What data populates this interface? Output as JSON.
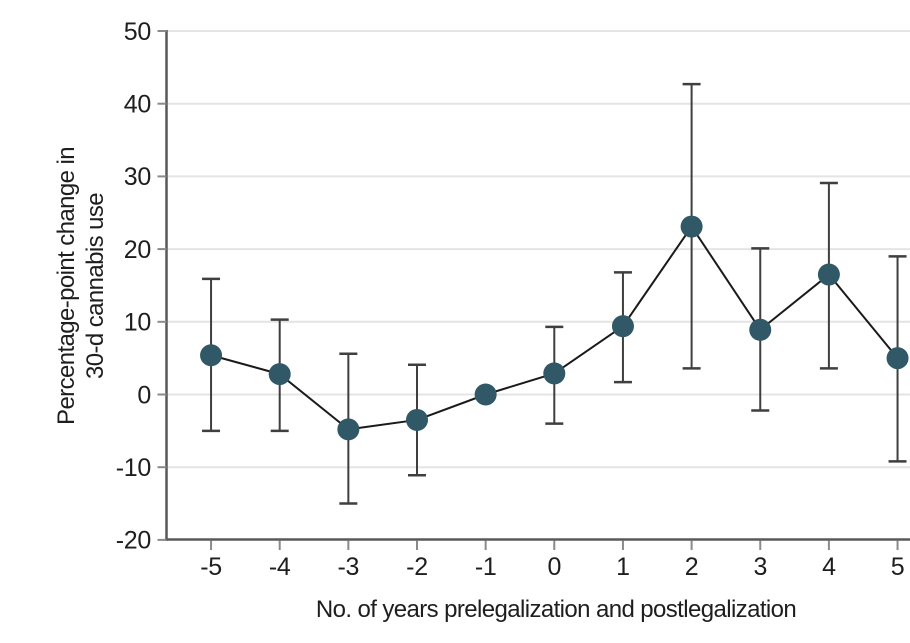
{
  "figure": {
    "background": "#ffffff"
  },
  "chart_data": {
    "type": "line",
    "variant": "point estimates with 95% CI error bars (event-study plot)",
    "x": [
      -5,
      -4,
      -3,
      -2,
      -1,
      0,
      1,
      2,
      3,
      4,
      5
    ],
    "estimates": [
      5.4,
      2.8,
      -4.8,
      -3.5,
      0.0,
      2.9,
      9.4,
      23.1,
      8.9,
      16.5,
      5.0
    ],
    "ci_low": [
      -5.0,
      -5.0,
      -15.0,
      -11.1,
      null,
      -4.0,
      1.7,
      3.6,
      -2.2,
      3.6,
      -9.2
    ],
    "ci_high": [
      15.9,
      10.3,
      5.6,
      4.1,
      null,
      9.3,
      16.8,
      42.7,
      20.1,
      29.1,
      19.0
    ],
    "reference_x": -1,
    "xlabel": "No. of years prelegalization and postlegalization",
    "ylabel": "Percentage-point change in 30-d cannabis use",
    "ylabel_lines": [
      "Percentage-point change in",
      "30-d cannabis use"
    ],
    "xticks": [
      -5,
      -4,
      -3,
      -2,
      -1,
      0,
      1,
      2,
      3,
      4,
      5
    ],
    "yticks": [
      -20,
      -10,
      0,
      10,
      20,
      30,
      40,
      50
    ],
    "ylim": [
      -20,
      50
    ],
    "grid": "horizontal",
    "legend_position": "none",
    "colors": {
      "point": "#305866",
      "line": "#1a1a1a",
      "error_bar": "#3f3f3f",
      "gridline": "#e4e4e4",
      "axis": "#58595b",
      "tick": "#8a8a8a",
      "text": "#1e1e1e",
      "background": "#ffffff"
    }
  }
}
